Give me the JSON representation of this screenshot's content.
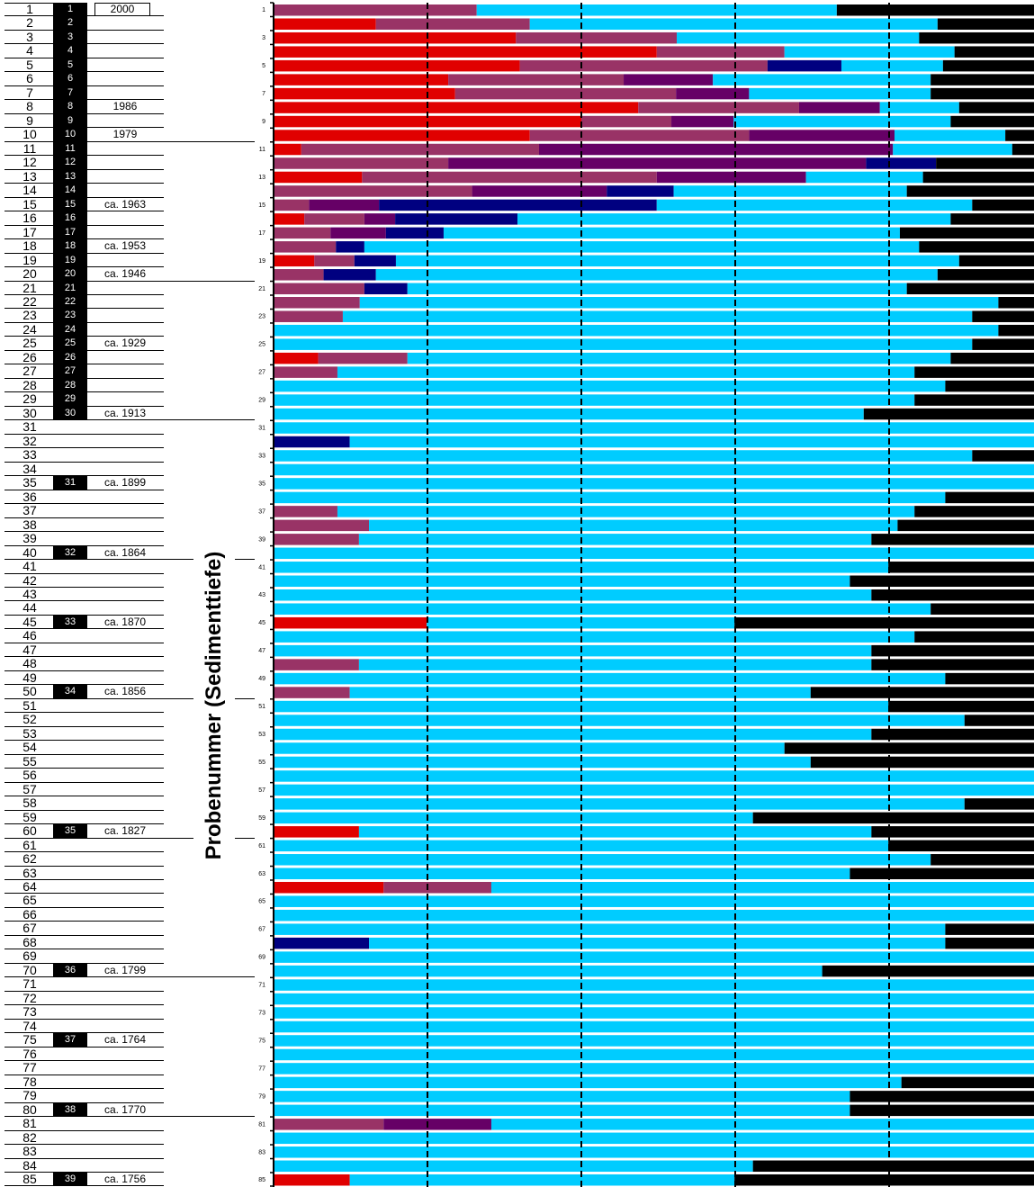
{
  "table": {
    "sample_numbers": [
      "1",
      "2",
      "3",
      "4",
      "5",
      "6",
      "7",
      "8",
      "9",
      "10",
      "11",
      "12",
      "13",
      "14",
      "15",
      "16",
      "17",
      "18",
      "19",
      "20",
      "21",
      "22",
      "23",
      "24",
      "25",
      "26",
      "27",
      "28",
      "29",
      "30",
      "",
      "",
      "",
      "",
      "31",
      "",
      "",
      "",
      "",
      "32",
      "",
      "",
      "",
      "",
      "33",
      "",
      "",
      "",
      "",
      "34",
      "",
      "",
      "",
      "",
      "",
      "",
      "",
      "",
      "",
      "35",
      "",
      "",
      "",
      "",
      "",
      "",
      "",
      "",
      "",
      "36",
      "",
      "",
      "",
      "",
      "37",
      "",
      "",
      "",
      "",
      "38",
      "",
      "",
      "",
      "",
      "39"
    ],
    "dates": [
      "2000",
      "",
      "",
      "",
      "",
      "",
      "",
      "1986",
      "",
      "1979",
      "",
      "",
      "",
      "",
      "ca. 1963",
      "",
      "",
      "ca. 1953",
      "",
      "ca. 1946",
      "",
      "",
      "",
      "",
      "ca. 1929",
      "",
      "",
      "",
      "",
      "ca. 1913",
      "",
      "",
      "",
      "",
      "ca. 1899",
      "",
      "",
      "",
      "",
      "ca. 1864",
      "",
      "",
      "",
      "",
      "ca. 1870",
      "",
      "",
      "",
      "",
      "ca. 1856",
      "",
      "",
      "",
      "",
      "",
      "",
      "",
      "",
      "",
      "ca. 1827",
      "",
      "",
      "",
      "",
      "",
      "",
      "",
      "",
      "",
      "ca. 1799",
      "",
      "",
      "",
      "",
      "ca. 1764",
      "",
      "",
      "",
      "",
      "ca. 1770",
      "",
      "",
      "",
      "",
      "ca. 1756"
    ]
  },
  "chart_data": {
    "type": "bar",
    "orientation": "horizontal",
    "stacked": true,
    "ylabel": "Probenummer (Sedimenttiefe)",
    "xlim": [
      0,
      100
    ],
    "x_gridlines": [
      20,
      40,
      60,
      80
    ],
    "gridline_style": "dashed",
    "categories": [
      "1",
      "2",
      "3",
      "4",
      "5",
      "6",
      "7",
      "8",
      "9",
      "10",
      "11",
      "12",
      "13",
      "14",
      "15",
      "16",
      "17",
      "18",
      "19",
      "20",
      "21",
      "22",
      "23",
      "24",
      "25",
      "26",
      "27",
      "28",
      "29",
      "30",
      "31",
      "32",
      "33",
      "34",
      "35",
      "36",
      "37",
      "38",
      "39",
      "40",
      "41",
      "42",
      "43",
      "44",
      "45",
      "46",
      "47",
      "48",
      "49",
      "50",
      "51",
      "52",
      "53",
      "54",
      "55",
      "56",
      "57",
      "58",
      "59",
      "60",
      "61",
      "62",
      "63",
      "64",
      "65",
      "66",
      "67",
      "68",
      "69",
      "70",
      "71",
      "72",
      "73",
      "74",
      "75",
      "76",
      "77",
      "78",
      "79",
      "80",
      "81",
      "82",
      "83",
      "84",
      "85"
    ],
    "series": [
      {
        "color": "#E00000",
        "values": [
          0,
          13.3,
          31.5,
          49.8,
          32.0,
          22.7,
          23.6,
          47.4,
          40.0,
          33.3,
          3.6,
          0,
          11.5,
          0,
          0,
          4.0,
          0,
          0,
          5.3,
          0,
          0,
          0,
          0,
          0,
          0,
          5.8,
          0,
          0,
          0,
          0,
          0,
          0,
          0,
          0,
          0,
          0,
          0,
          0,
          0,
          0,
          0,
          0,
          0,
          0,
          19.9,
          0,
          0,
          0,
          0,
          0,
          0,
          0,
          0,
          0,
          0,
          0,
          0,
          0,
          0,
          11.1,
          0,
          0,
          0,
          14.3,
          0,
          0,
          0,
          0,
          0,
          0,
          0,
          0,
          0,
          0,
          0,
          0,
          0,
          0,
          0,
          0,
          0,
          0,
          0,
          0,
          9.9
        ]
      },
      {
        "color": "#993366",
        "values": [
          26.4,
          20.0,
          20.9,
          16.6,
          32.2,
          22.8,
          28.7,
          20.9,
          11.7,
          28.5,
          30.9,
          22.7,
          38.3,
          25.8,
          4.6,
          7.8,
          7.4,
          8.1,
          5.2,
          6.5,
          11.8,
          11.2,
          9.0,
          0,
          0,
          11.6,
          8.3,
          0,
          0,
          0,
          0,
          0,
          0,
          0,
          0,
          0,
          8.3,
          12.4,
          11.1,
          0,
          0,
          0,
          0,
          0,
          0,
          0,
          0,
          11.1,
          0,
          9.9,
          0,
          0,
          0,
          0,
          0,
          0,
          0,
          0,
          0,
          0,
          0,
          0,
          0,
          14.0,
          0,
          0,
          0,
          0,
          0,
          0,
          0,
          0,
          0,
          0,
          0,
          0,
          0,
          0,
          0,
          0,
          14.3,
          0,
          0,
          0,
          0
        ]
      },
      {
        "color": "#660066",
        "values": [
          0,
          0,
          0,
          0,
          0,
          11.6,
          9.5,
          10.5,
          8.1,
          18.9,
          46.0,
          54.3,
          19.4,
          17.5,
          9.1,
          4.0,
          7.2,
          0,
          0,
          0,
          0,
          0,
          0,
          0,
          0,
          0,
          0,
          0,
          0,
          0,
          0,
          0,
          0,
          0,
          0,
          0,
          0,
          0,
          0,
          0,
          0,
          0,
          0,
          0,
          0,
          0,
          0,
          0,
          0,
          0,
          0,
          0,
          0,
          0,
          0,
          0,
          0,
          0,
          0,
          0,
          0,
          0,
          0,
          0,
          0,
          0,
          0,
          0,
          0,
          0,
          0,
          0,
          0,
          0,
          0,
          0,
          0,
          0,
          0,
          0,
          14.0,
          0,
          0,
          0,
          0
        ]
      },
      {
        "color": "#000080",
        "values": [
          0,
          0,
          0,
          0,
          9.6,
          0,
          0,
          0,
          0,
          0,
          0,
          9.1,
          0,
          8.7,
          36.1,
          15.9,
          7.5,
          3.7,
          5.4,
          6.8,
          5.6,
          0,
          0,
          0,
          0,
          0,
          0,
          0,
          0,
          0,
          0,
          9.9,
          0,
          0,
          0,
          0,
          0,
          0,
          0,
          0,
          0,
          0,
          0,
          0,
          0,
          0,
          0,
          0,
          0,
          0,
          0,
          0,
          0,
          0,
          0,
          0,
          0,
          0,
          0,
          0,
          0,
          0,
          0,
          0,
          0,
          0,
          0,
          12.4,
          0,
          0,
          0,
          0,
          0,
          0,
          0,
          0,
          0,
          0,
          0,
          0,
          0,
          0,
          0,
          0,
          0
        ]
      },
      {
        "color": "#00CCFF",
        "values": [
          46.8,
          53.0,
          31.5,
          22.1,
          13.2,
          28.3,
          23.6,
          10.3,
          28.2,
          14.4,
          15.5,
          0,
          15.2,
          30.3,
          41.0,
          56.3,
          59.3,
          72.1,
          73.2,
          73.0,
          64.9,
          83.0,
          81.8,
          94.2,
          90.8,
          70.6,
          75.0,
          87.3,
          83.3,
          76.7,
          100,
          90.1,
          90.8,
          100,
          100,
          87.3,
          75.0,
          68.7,
          66.6,
          100,
          79.9,
          74.9,
          77.7,
          85.4,
          40.0,
          83.3,
          77.7,
          66.6,
          87.3,
          59.9,
          79.9,
          89.8,
          77.7,
          66.4,
          69.8,
          100,
          100,
          89.8,
          62.3,
          66.6,
          79.9,
          85.4,
          74.9,
          71.7,
          100,
          100,
          87.3,
          74.9,
          100,
          71.3,
          100,
          100,
          100,
          100,
          100,
          100,
          100,
          81.6,
          74.9,
          74.9,
          71.7,
          100,
          100,
          62.3,
          50.0
        ]
      },
      {
        "color": "#000000",
        "values": [
          26.8,
          13.7,
          16.1,
          11.5,
          13.0,
          14.6,
          14.6,
          10.9,
          12.0,
          4.9,
          4.0,
          13.9,
          15.6,
          17.7,
          9.2,
          12.0,
          18.6,
          16.1,
          10.9,
          13.7,
          17.7,
          5.8,
          9.2,
          5.8,
          9.2,
          12.0,
          16.7,
          12.7,
          16.7,
          23.3,
          0,
          0,
          9.2,
          0,
          0,
          12.7,
          16.7,
          18.9,
          22.3,
          0,
          20.1,
          25.1,
          22.3,
          14.6,
          40.1,
          16.7,
          22.3,
          22.3,
          12.7,
          30.2,
          20.1,
          10.2,
          22.3,
          33.6,
          30.2,
          0,
          0,
          10.2,
          37.7,
          22.3,
          20.1,
          14.6,
          25.1,
          0,
          0,
          0,
          12.7,
          12.7,
          0,
          28.7,
          0,
          0,
          0,
          0,
          0,
          0,
          0,
          18.4,
          25.1,
          25.1,
          0,
          0,
          0,
          37.7,
          40.1
        ]
      }
    ]
  }
}
